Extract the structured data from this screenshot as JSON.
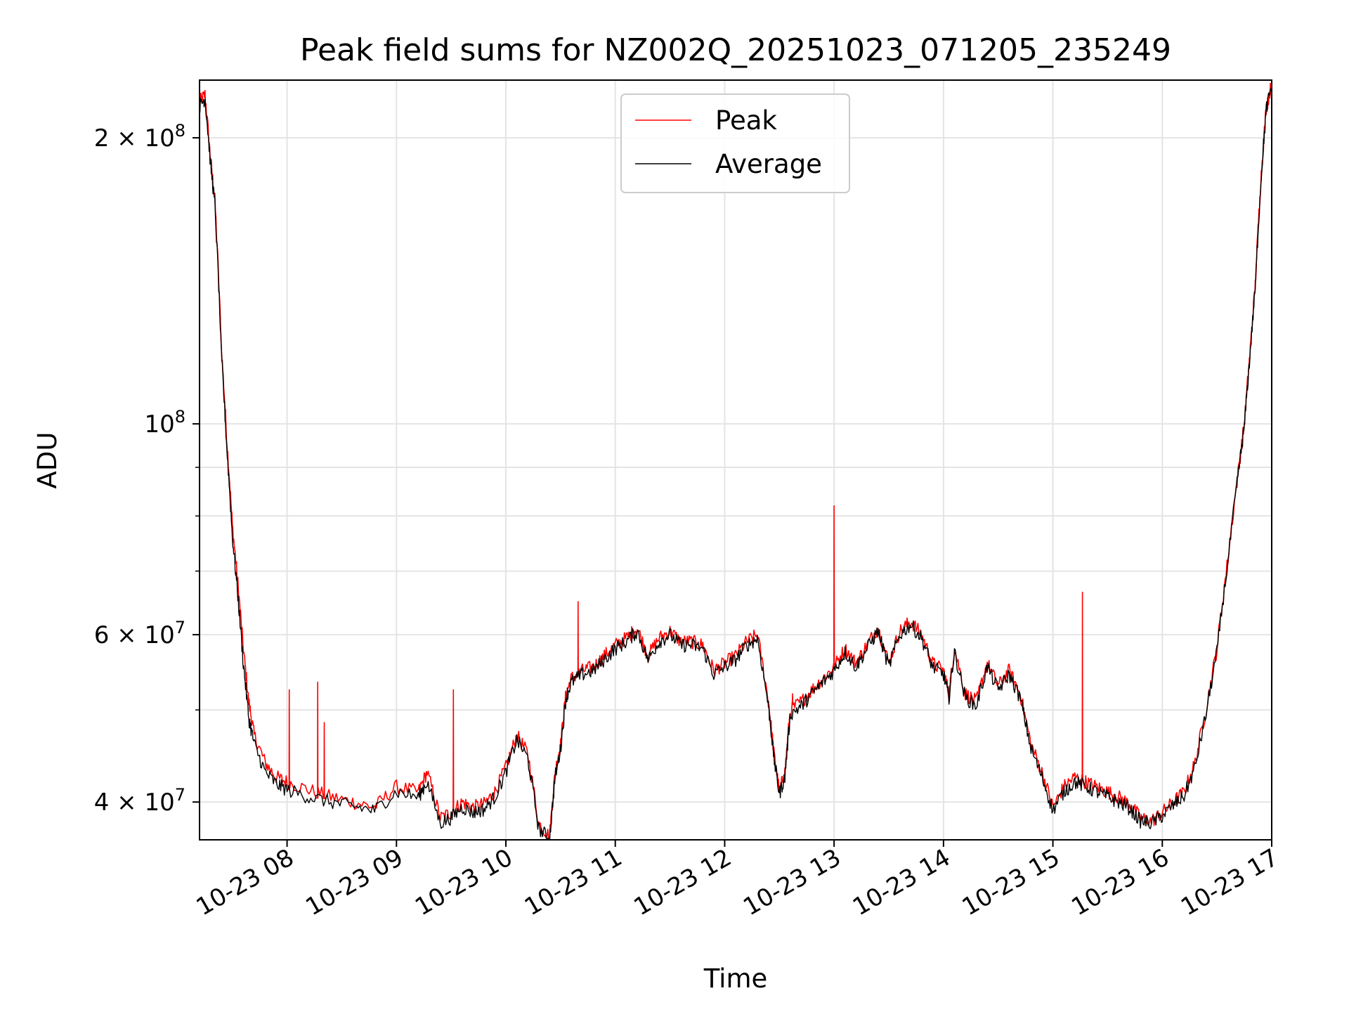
{
  "chart_data": {
    "type": "line",
    "title": "Peak field sums for NZ002Q_20251023_071205_235249",
    "xlabel": "Time",
    "ylabel": "ADU",
    "yscale": "log",
    "ylim": [
      36500000,
      230000000
    ],
    "xlim_hours": [
      7.2,
      17.0
    ],
    "grid": true,
    "legend_position": "upper-center",
    "x_ticks": [
      {
        "hour": 8,
        "label": "10-23 08"
      },
      {
        "hour": 9,
        "label": "10-23 09"
      },
      {
        "hour": 10,
        "label": "10-23 10"
      },
      {
        "hour": 11,
        "label": "10-23 11"
      },
      {
        "hour": 12,
        "label": "10-23 12"
      },
      {
        "hour": 13,
        "label": "10-23 13"
      },
      {
        "hour": 14,
        "label": "10-23 14"
      },
      {
        "hour": 15,
        "label": "10-23 15"
      },
      {
        "hour": 16,
        "label": "10-23 16"
      },
      {
        "hour": 17,
        "label": "10-23 17"
      }
    ],
    "y_ticks_major": [
      {
        "value": 40000000,
        "mantissa": "4",
        "exponent": "7"
      },
      {
        "value": 60000000,
        "mantissa": "6",
        "exponent": "7"
      },
      {
        "value": 100000000,
        "mantissa": "",
        "exponent": "8"
      },
      {
        "value": 200000000,
        "mantissa": "2",
        "exponent": "8"
      }
    ],
    "y_ticks_minor": [
      50000000,
      70000000,
      80000000,
      90000000
    ],
    "series": [
      {
        "name": "Peak",
        "color": "#ff0000",
        "x_hours": [
          7.2,
          7.25,
          7.3,
          7.34,
          7.4,
          7.45,
          7.5,
          7.55,
          7.6,
          7.65,
          7.7,
          7.8,
          7.9,
          8.0,
          8.2,
          8.4,
          8.6,
          8.8,
          9.0,
          9.2,
          9.28,
          9.4,
          9.5,
          9.6,
          9.7,
          9.8,
          9.9,
          10.0,
          10.1,
          10.2,
          10.3,
          10.4,
          10.45,
          10.5,
          10.55,
          10.6,
          10.7,
          10.8,
          10.9,
          11.0,
          11.1,
          11.2,
          11.3,
          11.4,
          11.5,
          11.6,
          11.7,
          11.8,
          11.9,
          12.0,
          12.1,
          12.2,
          12.3,
          12.4,
          12.45,
          12.5,
          12.55,
          12.6,
          12.7,
          12.8,
          12.9,
          13.0,
          13.1,
          13.2,
          13.3,
          13.4,
          13.5,
          13.6,
          13.7,
          13.8,
          13.9,
          14.0,
          14.05,
          14.1,
          14.2,
          14.3,
          14.4,
          14.5,
          14.6,
          14.7,
          14.8,
          14.9,
          15.0,
          15.1,
          15.2,
          15.3,
          15.4,
          15.5,
          15.6,
          15.7,
          15.8,
          15.9,
          16.0,
          16.1,
          16.2,
          16.3,
          16.4,
          16.5,
          16.6,
          16.7,
          16.75,
          16.8,
          16.85,
          16.9,
          16.95,
          17.0
        ],
        "values": [
          218000000,
          222000000,
          190000000,
          172000000,
          120000000,
          96000000,
          78000000,
          68000000,
          58000000,
          51000000,
          47000000,
          44000000,
          42500000,
          42000000,
          41200000,
          40500000,
          40000000,
          39500000,
          41500000,
          41000000,
          43000000,
          38500000,
          39000000,
          40000000,
          39500000,
          39800000,
          41000000,
          43500000,
          47000000,
          45000000,
          38000000,
          36800000,
          43000000,
          46000000,
          52000000,
          54000000,
          55000000,
          55500000,
          57000000,
          58500000,
          59500000,
          61000000,
          57000000,
          59500000,
          60500000,
          59000000,
          59000000,
          58500000,
          55000000,
          56000000,
          57000000,
          59000000,
          60000000,
          51000000,
          45000000,
          41000000,
          43000000,
          50000000,
          51000000,
          52500000,
          54000000,
          55500000,
          58000000,
          56000000,
          58500000,
          61000000,
          56000000,
          60500000,
          62000000,
          60000000,
          56000000,
          55000000,
          52000000,
          58000000,
          52000000,
          51000000,
          56000000,
          53000000,
          55000000,
          52000000,
          46000000,
          43000000,
          39500000,
          41500000,
          42500000,
          42000000,
          41500000,
          41000000,
          40500000,
          39800000,
          38500000,
          38200000,
          39000000,
          40000000,
          41000000,
          44000000,
          50000000,
          58000000,
          72000000,
          90000000,
          100000000,
          118000000,
          140000000,
          180000000,
          215000000,
          228000000
        ],
        "spikes": [
          {
            "hour": 8.02,
            "value": 52500000
          },
          {
            "hour": 8.28,
            "value": 53500000
          },
          {
            "hour": 8.34,
            "value": 48500000
          },
          {
            "hour": 9.52,
            "value": 52500000
          },
          {
            "hour": 10.66,
            "value": 65000000
          },
          {
            "hour": 12.62,
            "value": 52000000
          },
          {
            "hour": 13.0,
            "value": 82000000
          },
          {
            "hour": 15.27,
            "value": 66500000
          }
        ]
      },
      {
        "name": "Average",
        "color": "#000000",
        "x_hours": [
          7.2,
          7.25,
          7.3,
          7.34,
          7.4,
          7.45,
          7.5,
          7.55,
          7.6,
          7.65,
          7.7,
          7.8,
          7.9,
          8.0,
          8.2,
          8.4,
          8.6,
          8.8,
          9.0,
          9.2,
          9.28,
          9.4,
          9.5,
          9.6,
          9.7,
          9.8,
          9.9,
          10.0,
          10.1,
          10.2,
          10.3,
          10.4,
          10.45,
          10.5,
          10.55,
          10.6,
          10.7,
          10.8,
          10.9,
          11.0,
          11.1,
          11.2,
          11.3,
          11.4,
          11.5,
          11.6,
          11.7,
          11.8,
          11.9,
          12.0,
          12.1,
          12.2,
          12.3,
          12.4,
          12.45,
          12.5,
          12.55,
          12.6,
          12.7,
          12.8,
          12.9,
          13.0,
          13.1,
          13.2,
          13.3,
          13.4,
          13.5,
          13.6,
          13.7,
          13.8,
          13.9,
          14.0,
          14.05,
          14.1,
          14.2,
          14.3,
          14.4,
          14.5,
          14.6,
          14.7,
          14.8,
          14.9,
          15.0,
          15.1,
          15.2,
          15.3,
          15.4,
          15.5,
          15.6,
          15.7,
          15.8,
          15.9,
          16.0,
          16.1,
          16.2,
          16.3,
          16.4,
          16.5,
          16.6,
          16.7,
          16.75,
          16.8,
          16.85,
          16.9,
          16.95,
          17.0
        ],
        "values": [
          216000000,
          220000000,
          188000000,
          170000000,
          118000000,
          94000000,
          76000000,
          66000000,
          56000000,
          49000000,
          46000000,
          43000000,
          41800000,
          41200000,
          40500000,
          40000000,
          39600000,
          39200000,
          41000000,
          40500000,
          42000000,
          38000000,
          38500000,
          39500000,
          39000000,
          39300000,
          40500000,
          43000000,
          46500000,
          44500000,
          37500000,
          36600000,
          42500000,
          45500000,
          51500000,
          53500000,
          54500000,
          55000000,
          56500000,
          58000000,
          59000000,
          60500000,
          56500000,
          59000000,
          60000000,
          58500000,
          58500000,
          58000000,
          54500000,
          55500000,
          56500000,
          58500000,
          59500000,
          50500000,
          44500000,
          40800000,
          42500000,
          49500000,
          50500000,
          52000000,
          53500000,
          55000000,
          57500000,
          55500000,
          58000000,
          60500000,
          55500000,
          60000000,
          61500000,
          59500000,
          55500000,
          54500000,
          51500000,
          57500000,
          51500000,
          50500000,
          55500000,
          52500000,
          54500000,
          51500000,
          45500000,
          42500000,
          39200000,
          41000000,
          42000000,
          41500000,
          41000000,
          40500000,
          40000000,
          39400000,
          38200000,
          38000000,
          38700000,
          39700000,
          40600000,
          43500000,
          49500000,
          57500000,
          71500000,
          89500000,
          99500000,
          117500000,
          139000000,
          179000000,
          214000000,
          228000000
        ]
      }
    ]
  },
  "legend": {
    "items": [
      {
        "label": "Peak",
        "color": "#ff0000"
      },
      {
        "label": "Average",
        "color": "#000000"
      }
    ]
  }
}
